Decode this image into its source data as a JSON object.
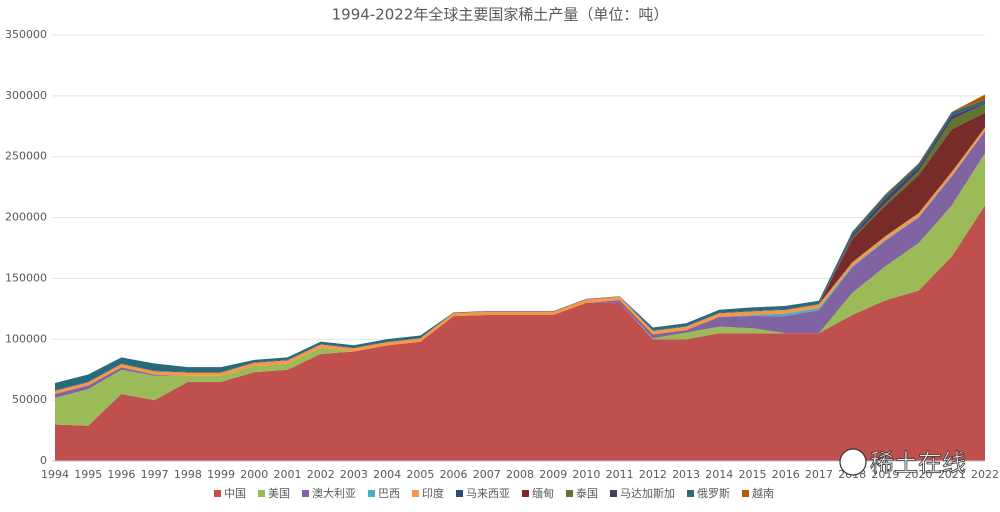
{
  "chart_data": {
    "type": "stacked-area",
    "title": "1994-2022年全球主要国家稀土产量（单位：吨）",
    "watermark": "稀土在线",
    "categories": [
      "1994",
      "1995",
      "1996",
      "1997",
      "1998",
      "1999",
      "2000",
      "2001",
      "2002",
      "2003",
      "2004",
      "2005",
      "2006",
      "2007",
      "2008",
      "2009",
      "2010",
      "2011",
      "2012",
      "2013",
      "2014",
      "2015",
      "2016",
      "2017",
      "2018",
      "2019",
      "2020",
      "2021",
      "2022"
    ],
    "ylim": [
      0,
      350000
    ],
    "yticks": [
      0,
      50000,
      100000,
      150000,
      200000,
      250000,
      300000,
      350000
    ],
    "grid": true,
    "legend": "bottom",
    "series": [
      {
        "name": "中国",
        "color": "#c0504d",
        "values": [
          30000,
          29000,
          55000,
          50000,
          65000,
          65000,
          73000,
          75000,
          88000,
          90000,
          95000,
          98000,
          119000,
          120000,
          120000,
          120000,
          130000,
          130000,
          100000,
          100000,
          105000,
          105000,
          105000,
          105000,
          120000,
          132000,
          140000,
          168000,
          210000
        ]
      },
      {
        "name": "美国",
        "color": "#9bbb59",
        "values": [
          22000,
          30000,
          20000,
          20000,
          5000,
          5000,
          5000,
          5000,
          5000,
          0,
          0,
          0,
          0,
          0,
          0,
          0,
          0,
          0,
          800,
          5500,
          5400,
          4100,
          0,
          0,
          18000,
          28000,
          39000,
          42000,
          43000
        ]
      },
      {
        "name": "澳大利亚",
        "color": "#8064a2",
        "values": [
          3000,
          3000,
          2000,
          1000,
          0,
          0,
          0,
          0,
          0,
          0,
          0,
          0,
          0,
          0,
          0,
          0,
          0,
          2200,
          3200,
          2000,
          8000,
          10000,
          14000,
          19000,
          21000,
          21000,
          21000,
          24000,
          18000
        ]
      },
      {
        "name": "巴西",
        "color": "#4bacc6",
        "values": [
          0,
          0,
          0,
          0,
          0,
          0,
          0,
          0,
          0,
          0,
          0,
          0,
          0,
          0,
          0,
          0,
          0,
          0,
          0,
          0,
          0,
          880,
          2200,
          1700,
          1100,
          700,
          600,
          500,
          80
        ]
      },
      {
        "name": "印度",
        "color": "#f79646",
        "values": [
          2700,
          2700,
          2700,
          2700,
          2700,
          2700,
          2700,
          2700,
          2700,
          2700,
          2700,
          2700,
          2700,
          2700,
          2700,
          2700,
          2800,
          2800,
          2900,
          2900,
          3000,
          3000,
          3000,
          3000,
          2900,
          2900,
          2900,
          2900,
          2900
        ]
      },
      {
        "name": "马来西亚",
        "color": "#2c4d75",
        "values": [
          400,
          400,
          400,
          400,
          400,
          400,
          400,
          400,
          400,
          400,
          400,
          400,
          400,
          400,
          400,
          400,
          400,
          400,
          400,
          400,
          400,
          400,
          400,
          400,
          200,
          200,
          200,
          200,
          200
        ]
      },
      {
        "name": "缅甸",
        "color": "#772c2a",
        "values": [
          0,
          0,
          0,
          0,
          0,
          0,
          0,
          0,
          0,
          0,
          0,
          0,
          0,
          0,
          0,
          0,
          0,
          0,
          0,
          0,
          0,
          0,
          0,
          0,
          19000,
          25000,
          31000,
          35000,
          12000
        ]
      },
      {
        "name": "泰国",
        "color": "#5f7530",
        "values": [
          0,
          0,
          0,
          0,
          0,
          0,
          0,
          0,
          0,
          0,
          0,
          0,
          0,
          0,
          0,
          0,
          0,
          0,
          0,
          0,
          0,
          0,
          0,
          0,
          1000,
          1800,
          3600,
          8000,
          7100
        ]
      },
      {
        "name": "马达加斯加",
        "color": "#4d3b62",
        "values": [
          0,
          0,
          0,
          0,
          0,
          0,
          0,
          0,
          0,
          0,
          0,
          0,
          0,
          0,
          0,
          0,
          0,
          0,
          0,
          0,
          0,
          0,
          0,
          0,
          2000,
          4000,
          2800,
          3200,
          960
        ]
      },
      {
        "name": "俄罗斯",
        "color": "#276a7c",
        "values": [
          6000,
          6000,
          5000,
          6000,
          4000,
          4000,
          2000,
          2000,
          2000,
          2000,
          2000,
          2000,
          0,
          0,
          0,
          0,
          0,
          0,
          2400,
          2400,
          2500,
          2800,
          2800,
          2600,
          2700,
          2700,
          2700,
          2600,
          2600
        ]
      },
      {
        "name": "越南",
        "color": "#b65708",
        "values": [
          0,
          0,
          0,
          0,
          0,
          0,
          0,
          0,
          0,
          0,
          0,
          0,
          0,
          0,
          0,
          0,
          0,
          0,
          0,
          0,
          0,
          0,
          0,
          0,
          400,
          900,
          700,
          400,
          4300
        ]
      }
    ]
  }
}
